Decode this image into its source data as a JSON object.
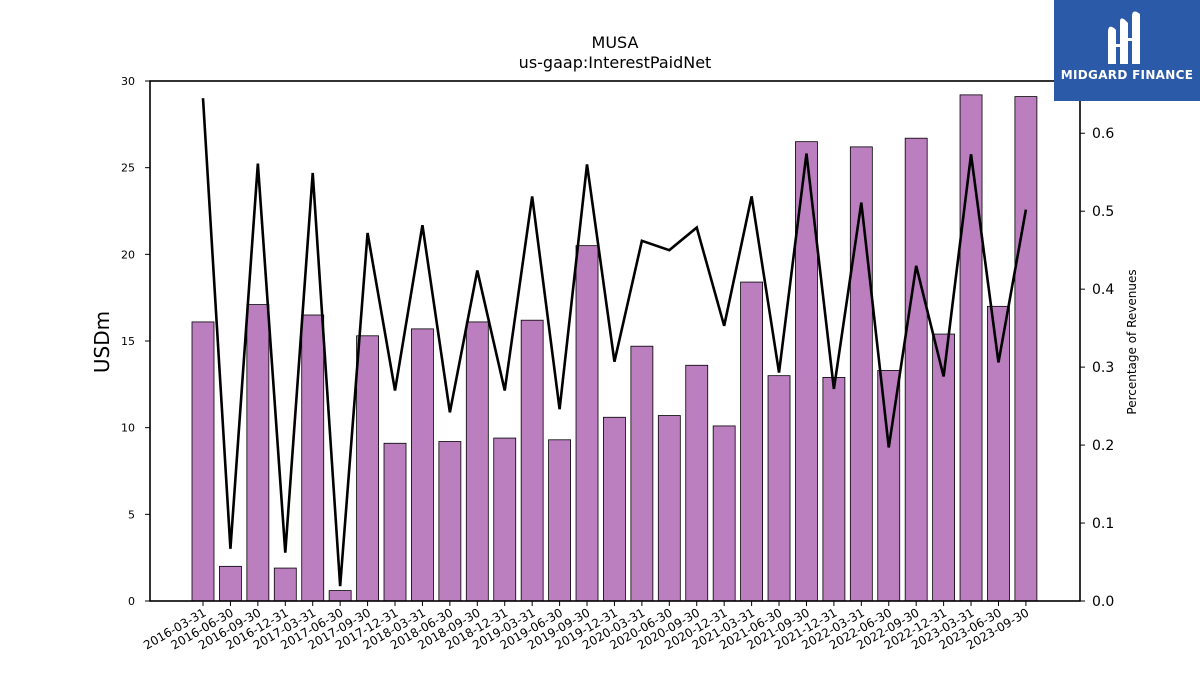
{
  "brand": {
    "name": "MIDGARD FINANCE",
    "color": "#2b5aa8",
    "icon": "midgard-logo-icon"
  },
  "chart_data": {
    "type": "bar",
    "title": "MUSA",
    "subtitle": "us-gaap:InterestPaidNet",
    "ylabel": "USDm",
    "y2label": "Percentage of Revenues",
    "ylim": [
      0,
      30
    ],
    "yticks": [
      0,
      5,
      10,
      15,
      20,
      25,
      30
    ],
    "y2lim": [
      0,
      0.667
    ],
    "y2ticks": [
      "0.0",
      "0.1",
      "0.2",
      "0.3",
      "0.4",
      "0.5",
      "0.6"
    ],
    "bar_color": "#bb7fc0",
    "line_color": "#000000",
    "categories": [
      "2016-03-31",
      "2016-06-30",
      "2016-09-30",
      "2016-12-31",
      "2017-03-31",
      "2017-06-30",
      "2017-09-30",
      "2017-12-31",
      "2018-03-31",
      "2018-06-30",
      "2018-09-30",
      "2018-12-31",
      "2019-03-31",
      "2019-06-30",
      "2019-09-30",
      "2019-12-31",
      "2020-03-31",
      "2020-06-30",
      "2020-09-30",
      "2020-12-31",
      "2021-03-31",
      "2021-06-30",
      "2021-09-30",
      "2021-12-31",
      "2022-03-31",
      "2022-06-30",
      "2022-09-30",
      "2022-12-31",
      "2023-03-31",
      "2023-06-30",
      "2023-09-30"
    ],
    "series": [
      {
        "type": "bar",
        "axis": "left",
        "values": [
          16.1,
          2.0,
          17.1,
          1.9,
          16.5,
          0.6,
          15.3,
          9.1,
          15.7,
          9.2,
          16.1,
          9.4,
          16.2,
          9.3,
          20.5,
          10.6,
          14.7,
          10.7,
          13.6,
          10.1,
          18.4,
          13.0,
          26.5,
          12.9,
          26.2,
          13.3,
          26.7,
          15.4,
          29.2,
          17.0,
          29.1
        ]
      },
      {
        "type": "line",
        "axis": "right",
        "values": [
          0.645,
          0.067,
          0.561,
          0.062,
          0.549,
          0.019,
          0.472,
          0.27,
          0.482,
          0.242,
          0.424,
          0.27,
          0.519,
          0.246,
          0.56,
          0.307,
          0.462,
          0.45,
          0.479,
          0.353,
          0.519,
          0.293,
          0.574,
          0.272,
          0.511,
          0.197,
          0.43,
          0.288,
          0.573,
          0.306,
          0.502
        ]
      }
    ]
  }
}
